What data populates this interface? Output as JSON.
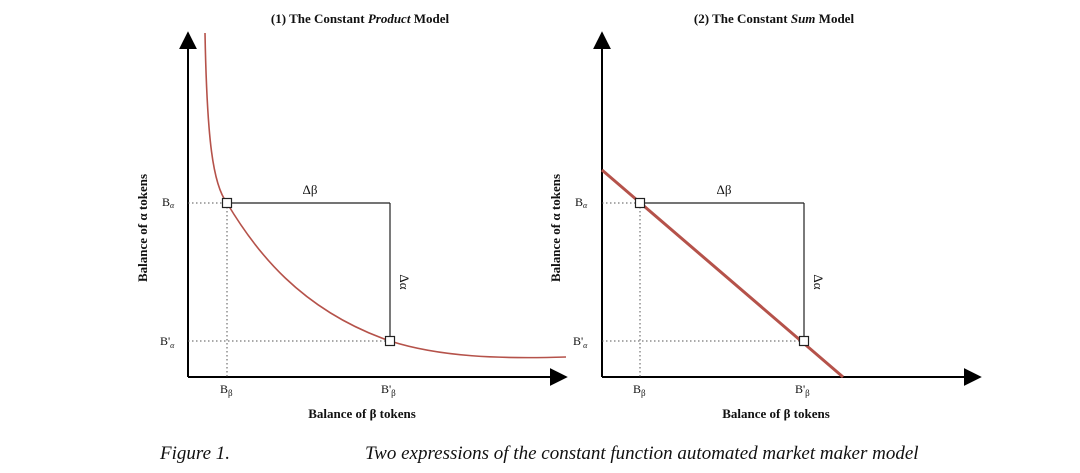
{
  "panel1": {
    "title_pre": "(1) The Constant ",
    "title_em": "Product",
    "title_post": " Model",
    "ylabel": "Balance of α tokens",
    "xlabel": "Balance of β tokens",
    "y_tick_top": "B",
    "y_tick_top_sub": "α",
    "y_tick_bottom": "B'",
    "y_tick_bottom_sub": "α",
    "x_tick_left": "B",
    "x_tick_left_sub": "β",
    "x_tick_right": "B'",
    "x_tick_right_sub": "β",
    "delta_h": "Δβ",
    "delta_v": "Δα"
  },
  "panel2": {
    "title_pre": "(2) The Constant ",
    "title_em": "Sum",
    "title_post": " Model",
    "ylabel": "Balance of α tokens",
    "xlabel": "Balance of β tokens",
    "y_tick_top": "B",
    "y_tick_top_sub": "α",
    "y_tick_bottom": "B'",
    "y_tick_bottom_sub": "α",
    "x_tick_left": "B",
    "x_tick_left_sub": "β",
    "x_tick_right": "B'",
    "x_tick_right_sub": "β",
    "delta_h": "Δβ",
    "delta_v": "Δα"
  },
  "caption": {
    "label": "Figure 1.",
    "text": "Two expressions of the constant function automated market maker model"
  },
  "colors": {
    "curve": "#b5524a",
    "axis": "#000000"
  }
}
